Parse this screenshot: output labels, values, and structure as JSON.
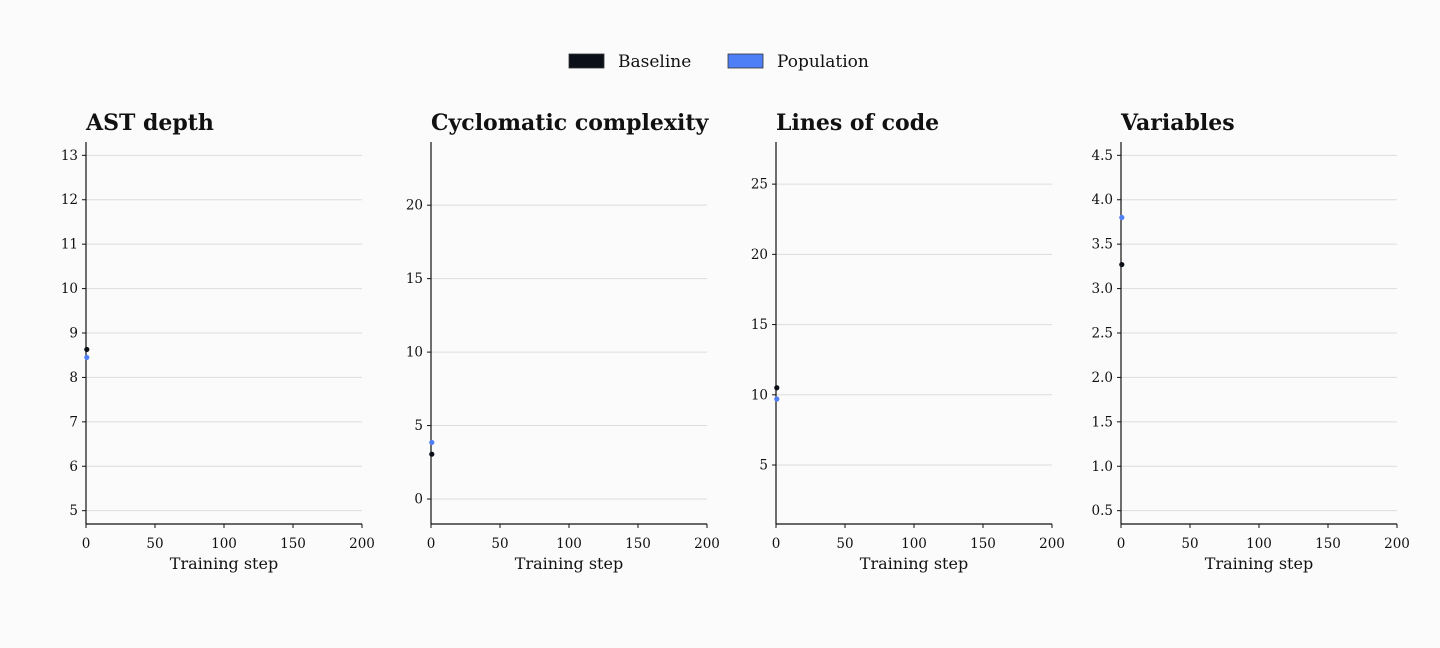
{
  "legend": {
    "items": [
      {
        "label": "Baseline",
        "color": "#0b1018"
      },
      {
        "label": "Population",
        "color": "#4f7ff7"
      }
    ]
  },
  "chart_data": [
    {
      "type": "scatter",
      "title": "AST depth",
      "xlabel": "Training step",
      "ylabel": "",
      "xlim": [
        0,
        200
      ],
      "ylim": [
        4.7,
        13.3
      ],
      "xticks": [
        0,
        50,
        100,
        150,
        200
      ],
      "yticks": [
        5,
        6,
        7,
        8,
        9,
        10,
        11,
        12,
        13
      ],
      "grid": "horizontal",
      "series": [
        {
          "name": "Baseline",
          "color": "#0b1018",
          "x": [
            0
          ],
          "y": [
            8.63
          ]
        },
        {
          "name": "Population",
          "color": "#4f7ff7",
          "x": [
            0
          ],
          "y": [
            8.45
          ]
        }
      ]
    },
    {
      "type": "scatter",
      "title": "Cyclomatic complexity",
      "xlabel": "Training step",
      "ylabel": "",
      "xlim": [
        0,
        200
      ],
      "ylim": [
        -1.7,
        24.3
      ],
      "xticks": [
        0,
        50,
        100,
        150,
        200
      ],
      "yticks": [
        0,
        5,
        10,
        15,
        20
      ],
      "grid": "horizontal",
      "series": [
        {
          "name": "Baseline",
          "color": "#0b1018",
          "x": [
            0
          ],
          "y": [
            3.05
          ]
        },
        {
          "name": "Population",
          "color": "#4f7ff7",
          "x": [
            0
          ],
          "y": [
            3.85
          ]
        }
      ]
    },
    {
      "type": "scatter",
      "title": "Lines of code",
      "xlabel": "Training step",
      "ylabel": "",
      "xlim": [
        0,
        200
      ],
      "ylim": [
        0.8,
        28.0
      ],
      "xticks": [
        0,
        50,
        100,
        150,
        200
      ],
      "yticks": [
        5,
        10,
        15,
        20,
        25
      ],
      "grid": "horizontal",
      "series": [
        {
          "name": "Baseline",
          "color": "#0b1018",
          "x": [
            0
          ],
          "y": [
            10.5
          ]
        },
        {
          "name": "Population",
          "color": "#4f7ff7",
          "x": [
            0
          ],
          "y": [
            9.7
          ]
        }
      ]
    },
    {
      "type": "scatter",
      "title": "Variables",
      "xlabel": "Training step",
      "ylabel": "",
      "xlim": [
        0,
        200
      ],
      "ylim": [
        0.35,
        4.65
      ],
      "xticks": [
        0,
        50,
        100,
        150,
        200
      ],
      "yticks": [
        0.5,
        1.0,
        1.5,
        2.0,
        2.5,
        3.0,
        3.5,
        4.0,
        4.5
      ],
      "ytick_labels": [
        "0.5",
        "1.0",
        "1.5",
        "2.0",
        "2.5",
        "3.0",
        "3.5",
        "4.0",
        "4.5"
      ],
      "grid": "horizontal",
      "series": [
        {
          "name": "Baseline",
          "color": "#0b1018",
          "x": [
            0
          ],
          "y": [
            3.27
          ]
        },
        {
          "name": "Population",
          "color": "#4f7ff7",
          "x": [
            0
          ],
          "y": [
            3.8
          ]
        }
      ]
    }
  ]
}
